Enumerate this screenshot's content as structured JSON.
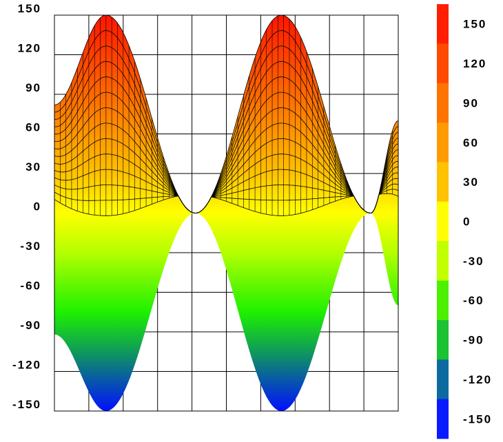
{
  "chart_data": {
    "type": "area",
    "title": "",
    "xlabel": "",
    "ylabel": "",
    "ylim": [
      -150,
      150
    ],
    "y_ticks": [
      "150",
      "120",
      "90",
      "60",
      "30",
      "0",
      "-30",
      "-60",
      "-90",
      "-120",
      "-150"
    ],
    "x_ticks": [],
    "grid": true,
    "x_grid_lines": 10,
    "series": [
      {
        "values": [
          {
            "x": 0.0,
            "upper": 82,
            "lower": -92
          },
          {
            "x": 1.5,
            "upper": 150,
            "lower": -150
          },
          {
            "x": 4.1,
            "upper": 0,
            "lower": 0
          },
          {
            "x": 6.6,
            "upper": 150,
            "lower": -150
          },
          {
            "x": 9.2,
            "upper": 0,
            "lower": 0
          },
          {
            "x": 10.0,
            "upper": 70,
            "lower": -70
          }
        ]
      }
    ],
    "surface_lines": 13,
    "colorbar": {
      "labels": [
        "150",
        "120",
        "90",
        "60",
        "30",
        "0",
        "-30",
        "-60",
        "-90",
        "-120",
        "-150"
      ],
      "colors": [
        "#ff1f00",
        "#ff4a00",
        "#ff7300",
        "#ff9a00",
        "#ffc200",
        "#ffff00",
        "#c2ff00",
        "#4cf000",
        "#1bc232",
        "#0d6aa0",
        "#0a1aff"
      ]
    }
  }
}
